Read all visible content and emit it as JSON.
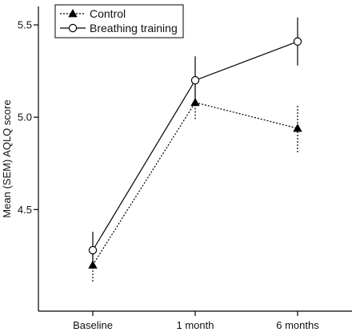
{
  "chart_data": {
    "type": "line",
    "title": "",
    "xlabel": "",
    "ylabel": "Mean (SEM) AQLQ score",
    "categories": [
      "Baseline",
      "1 month",
      "6 months"
    ],
    "ylim": [
      3.95,
      5.6
    ],
    "yticks": [
      "4.5",
      "5.0",
      "5.5"
    ],
    "grid": false,
    "legend_position": "top-left",
    "series": [
      {
        "name": "Control",
        "values": [
          4.2,
          5.08,
          4.94
        ],
        "sem": [
          0.09,
          0.09,
          0.13
        ],
        "line": "dotted",
        "marker": "filled-triangle",
        "color": "#000000"
      },
      {
        "name": "Breathing training",
        "values": [
          4.28,
          5.2,
          5.41
        ],
        "sem": [
          0.1,
          0.13,
          0.13
        ],
        "line": "solid",
        "marker": "open-circle",
        "color": "#000000"
      }
    ]
  }
}
